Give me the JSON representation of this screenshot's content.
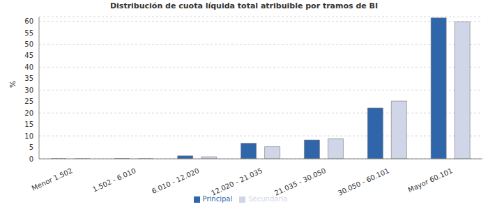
{
  "chart_data": {
    "type": "bar",
    "title": "Distribución de cuota líquida total atribuible por tramos de BI",
    "y_label": "%",
    "categories": [
      "Menor 1.502",
      "1.502 - 6.010",
      "6.010 - 12.020",
      "12.020 - 21.035",
      "21.035 - 30.050",
      "30.050 - 60.101",
      "Mayor 60.101"
    ],
    "series": [
      {
        "name": "Principal",
        "color": "#2f66a9",
        "values": [
          0.05,
          0.1,
          1.3,
          6.8,
          8.2,
          22.2,
          61.5
        ]
      },
      {
        "name": "Secundaria",
        "color": "#d1d5e8",
        "values": [
          0.02,
          0.05,
          0.9,
          5.3,
          8.8,
          25.2,
          59.8
        ]
      }
    ],
    "ylim": [
      0,
      62
    ],
    "yticks": [
      0,
      5,
      10,
      15,
      20,
      25,
      30,
      35,
      40,
      45,
      50,
      55,
      60
    ],
    "grid": true,
    "legend": "bottom"
  }
}
